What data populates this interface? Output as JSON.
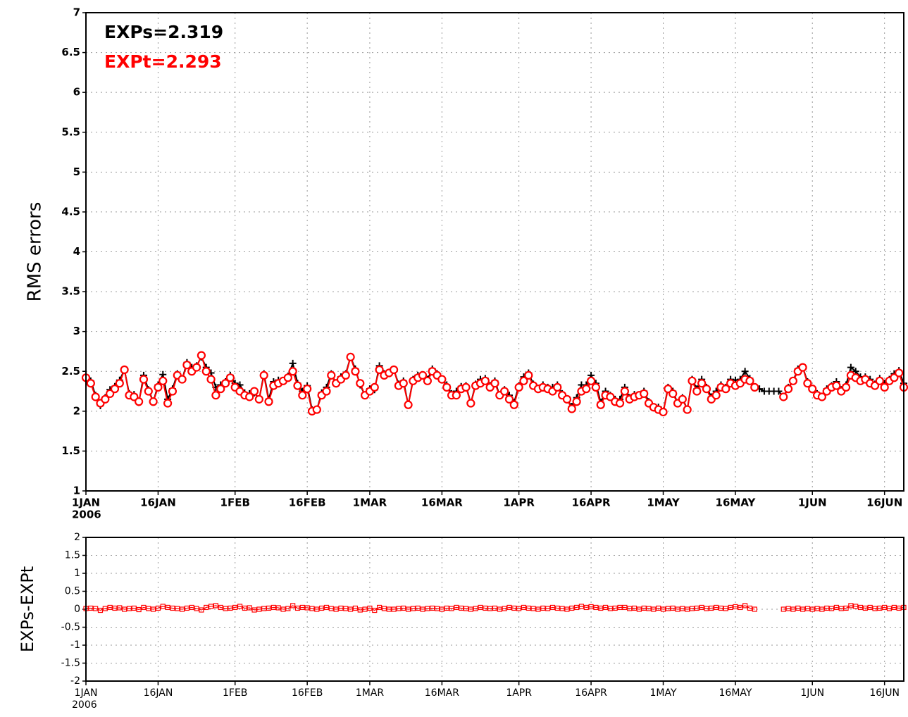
{
  "chart_data": [
    {
      "type": "line",
      "ylabel": "RMS errors",
      "x": [
        "2006-01-01",
        "2006-01-02",
        "2006-01-03",
        "2006-01-04",
        "2006-01-05",
        "2006-01-06",
        "2006-01-07",
        "2006-01-08",
        "2006-01-09",
        "2006-01-10",
        "2006-01-11",
        "2006-01-12",
        "2006-01-13",
        "2006-01-14",
        "2006-01-15",
        "2006-01-16",
        "2006-01-17",
        "2006-01-18",
        "2006-01-19",
        "2006-01-20",
        "2006-01-21",
        "2006-01-22",
        "2006-01-23",
        "2006-01-24",
        "2006-01-25",
        "2006-01-26",
        "2006-01-27",
        "2006-01-28",
        "2006-01-29",
        "2006-01-30",
        "2006-01-31",
        "2006-02-01",
        "2006-02-02",
        "2006-02-03",
        "2006-02-04",
        "2006-02-05",
        "2006-02-06",
        "2006-02-07",
        "2006-02-08",
        "2006-02-09",
        "2006-02-10",
        "2006-02-11",
        "2006-02-12",
        "2006-02-13",
        "2006-02-14",
        "2006-02-15",
        "2006-02-16",
        "2006-02-17",
        "2006-02-18",
        "2006-02-19",
        "2006-02-20",
        "2006-02-21",
        "2006-02-22",
        "2006-02-23",
        "2006-02-24",
        "2006-02-25",
        "2006-02-26",
        "2006-02-27",
        "2006-02-28",
        "2006-03-01",
        "2006-03-02",
        "2006-03-03",
        "2006-03-04",
        "2006-03-05",
        "2006-03-06",
        "2006-03-07",
        "2006-03-08",
        "2006-03-09",
        "2006-03-10",
        "2006-03-11",
        "2006-03-12",
        "2006-03-13",
        "2006-03-14",
        "2006-03-15",
        "2006-03-16",
        "2006-03-17",
        "2006-03-18",
        "2006-03-19",
        "2006-03-20",
        "2006-03-21",
        "2006-03-22",
        "2006-03-23",
        "2006-03-24",
        "2006-03-25",
        "2006-03-26",
        "2006-03-27",
        "2006-03-28",
        "2006-03-29",
        "2006-03-30",
        "2006-03-31",
        "2006-04-01",
        "2006-04-02",
        "2006-04-03",
        "2006-04-04",
        "2006-04-05",
        "2006-04-06",
        "2006-04-07",
        "2006-04-08",
        "2006-04-09",
        "2006-04-10",
        "2006-04-11",
        "2006-04-12",
        "2006-04-13",
        "2006-04-14",
        "2006-04-15",
        "2006-04-16",
        "2006-04-17",
        "2006-04-18",
        "2006-04-19",
        "2006-04-20",
        "2006-04-21",
        "2006-04-22",
        "2006-04-23",
        "2006-04-24",
        "2006-04-25",
        "2006-04-26",
        "2006-04-27",
        "2006-04-28",
        "2006-04-29",
        "2006-04-30",
        "2006-05-01",
        "2006-05-02",
        "2006-05-03",
        "2006-05-04",
        "2006-05-05",
        "2006-05-06",
        "2006-05-07",
        "2006-05-08",
        "2006-05-09",
        "2006-05-10",
        "2006-05-11",
        "2006-05-12",
        "2006-05-13",
        "2006-05-14",
        "2006-05-15",
        "2006-05-16",
        "2006-05-17",
        "2006-05-18",
        "2006-05-19",
        "2006-05-20",
        "2006-05-21",
        "2006-05-22",
        "2006-05-23",
        "2006-05-24",
        "2006-05-25",
        "2006-05-26",
        "2006-05-27",
        "2006-05-28",
        "2006-05-29",
        "2006-05-30",
        "2006-05-31",
        "2006-06-01",
        "2006-06-02",
        "2006-06-03",
        "2006-06-04",
        "2006-06-05",
        "2006-06-06",
        "2006-06-07",
        "2006-06-08",
        "2006-06-09",
        "2006-06-10",
        "2006-06-11",
        "2006-06-12",
        "2006-06-13",
        "2006-06-14",
        "2006-06-15",
        "2006-06-16",
        "2006-06-17",
        "2006-06-18",
        "2006-06-19",
        "2006-06-20"
      ],
      "series": [
        {
          "name": "EXPs=2.319",
          "color": "#000000",
          "marker": "plus",
          "values": [
            2.44,
            2.38,
            2.2,
            2.07,
            2.17,
            2.27,
            2.31,
            2.39,
            2.52,
            2.22,
            2.21,
            2.11,
            2.45,
            2.27,
            2.12,
            2.33,
            2.46,
            2.15,
            2.28,
            2.47,
            2.4,
            2.61,
            2.55,
            2.57,
            2.68,
            2.55,
            2.48,
            2.3,
            2.33,
            2.37,
            2.45,
            2.35,
            2.33,
            2.23,
            2.22,
            2.23,
            2.15,
            2.47,
            2.15,
            2.37,
            2.39,
            2.38,
            2.44,
            2.6,
            2.35,
            2.25,
            2.32,
            2.02,
            2.02,
            2.23,
            2.3,
            2.47,
            2.35,
            2.43,
            2.47,
            2.68,
            2.53,
            2.33,
            2.2,
            2.28,
            2.27,
            2.57,
            2.47,
            2.48,
            2.52,
            2.34,
            2.38,
            2.08,
            2.4,
            2.45,
            2.45,
            2.4,
            2.53,
            2.47,
            2.4,
            2.33,
            2.22,
            2.25,
            2.31,
            2.32,
            2.1,
            2.34,
            2.4,
            2.41,
            2.32,
            2.38,
            2.2,
            2.27,
            2.2,
            2.11,
            2.32,
            2.43,
            2.48,
            2.34,
            2.28,
            2.33,
            2.3,
            2.3,
            2.33,
            2.22,
            2.15,
            2.06,
            2.17,
            2.33,
            2.33,
            2.45,
            2.35,
            2.11,
            2.25,
            2.2,
            2.15,
            2.15,
            2.3,
            2.17,
            2.21,
            2.2,
            2.25,
            2.12,
            2.05,
            2.05,
            1.99,
            2.3,
            2.25,
            2.1,
            2.17,
            2.02,
            2.4,
            2.28,
            2.4,
            2.3,
            2.18,
            2.25,
            2.33,
            2.3,
            2.4,
            2.39,
            2.4,
            2.5,
            2.41,
            2.3,
            2.28,
            2.25,
            2.25,
            2.25,
            2.25,
            2.18,
            2.3,
            2.38,
            2.53,
            2.55,
            2.37,
            2.28,
            2.22,
            2.18,
            2.28,
            2.32,
            2.37,
            2.27,
            2.33,
            2.55,
            2.5,
            2.43,
            2.43,
            2.4,
            2.34,
            2.41,
            2.35,
            2.4,
            2.47,
            2.51,
            2.35
          ]
        },
        {
          "name": "EXPt=2.293",
          "color": "#ff0000",
          "marker": "circle",
          "values": [
            2.42,
            2.35,
            2.18,
            2.1,
            2.15,
            2.22,
            2.28,
            2.35,
            2.52,
            2.2,
            2.18,
            2.12,
            2.4,
            2.25,
            2.12,
            2.3,
            2.38,
            2.1,
            2.25,
            2.45,
            2.4,
            2.58,
            2.5,
            2.55,
            2.7,
            2.5,
            2.4,
            2.2,
            2.28,
            2.35,
            2.42,
            2.3,
            2.25,
            2.2,
            2.18,
            2.25,
            2.15,
            2.45,
            2.12,
            2.32,
            2.35,
            2.38,
            2.42,
            2.5,
            2.32,
            2.2,
            2.28,
            2.0,
            2.02,
            2.2,
            2.25,
            2.45,
            2.35,
            2.4,
            2.45,
            2.68,
            2.5,
            2.35,
            2.2,
            2.25,
            2.3,
            2.52,
            2.45,
            2.48,
            2.52,
            2.32,
            2.35,
            2.08,
            2.38,
            2.42,
            2.45,
            2.38,
            2.5,
            2.45,
            2.4,
            2.3,
            2.2,
            2.2,
            2.28,
            2.3,
            2.1,
            2.32,
            2.35,
            2.38,
            2.3,
            2.35,
            2.2,
            2.25,
            2.15,
            2.08,
            2.3,
            2.38,
            2.45,
            2.32,
            2.28,
            2.3,
            2.28,
            2.25,
            2.3,
            2.2,
            2.15,
            2.03,
            2.12,
            2.25,
            2.28,
            2.38,
            2.3,
            2.08,
            2.2,
            2.18,
            2.12,
            2.1,
            2.25,
            2.15,
            2.18,
            2.2,
            2.22,
            2.1,
            2.05,
            2.02,
            1.99,
            2.28,
            2.22,
            2.1,
            2.15,
            2.02,
            2.38,
            2.25,
            2.35,
            2.28,
            2.15,
            2.2,
            2.3,
            2.28,
            2.35,
            2.32,
            2.35,
            2.4,
            2.38,
            2.3,
            null,
            null,
            null,
            null,
            null,
            2.18,
            2.28,
            2.38,
            2.5,
            2.55,
            2.35,
            2.28,
            2.2,
            2.18,
            2.25,
            2.3,
            2.32,
            2.25,
            2.3,
            2.45,
            2.42,
            2.38,
            2.4,
            2.35,
            2.32,
            2.38,
            2.3,
            2.38,
            2.42,
            2.48,
            2.3
          ]
        }
      ],
      "xlim": [
        "2006-01-01",
        "2006-06-20"
      ],
      "xticks": [
        {
          "value": "2006-01-01",
          "label": "1JAN"
        },
        {
          "value": "2006-01-16",
          "label": "16JAN"
        },
        {
          "value": "2006-02-01",
          "label": "1FEB"
        },
        {
          "value": "2006-02-16",
          "label": "16FEB"
        },
        {
          "value": "2006-03-01",
          "label": "1MAR"
        },
        {
          "value": "2006-03-16",
          "label": "16MAR"
        },
        {
          "value": "2006-04-01",
          "label": "1APR"
        },
        {
          "value": "2006-04-16",
          "label": "16APR"
        },
        {
          "value": "2006-05-01",
          "label": "1MAY"
        },
        {
          "value": "2006-05-16",
          "label": "16MAY"
        },
        {
          "value": "2006-06-01",
          "label": "1JUN"
        },
        {
          "value": "2006-06-16",
          "label": "16JUN"
        }
      ],
      "x_year_label": "2006",
      "ylim": [
        1,
        7
      ],
      "yticks": [
        1,
        1.5,
        2,
        2.5,
        3,
        3.5,
        4,
        4.5,
        5,
        5.5,
        6,
        6.5,
        7
      ],
      "grid": true
    },
    {
      "type": "line",
      "ylabel": "EXPs-EXPt",
      "series": [
        {
          "color": "#ff0000",
          "marker": "square",
          "values": [
            0.02,
            0.03,
            0.02,
            -0.03,
            0.02,
            0.05,
            0.03,
            0.04,
            0.0,
            0.02,
            0.03,
            -0.01,
            0.05,
            0.02,
            0.0,
            0.03,
            0.08,
            0.05,
            0.03,
            0.02,
            0.0,
            0.03,
            0.05,
            0.02,
            -0.02,
            0.05,
            0.08,
            0.1,
            0.05,
            0.02,
            0.03,
            0.05,
            0.08,
            0.03,
            0.04,
            -0.02,
            0.0,
            0.02,
            0.03,
            0.05,
            0.04,
            0.0,
            0.02,
            0.1,
            0.03,
            0.05,
            0.04,
            0.02,
            0.0,
            0.03,
            0.05,
            0.02,
            0.0,
            0.03,
            0.02,
            0.0,
            0.03,
            -0.02,
            0.0,
            0.03,
            -0.03,
            0.05,
            0.02,
            0.0,
            0.0,
            0.02,
            0.03,
            0.0,
            0.02,
            0.03,
            0.0,
            0.02,
            0.03,
            0.02,
            0.0,
            0.03,
            0.02,
            0.05,
            0.03,
            0.02,
            0.0,
            0.02,
            0.05,
            0.03,
            0.02,
            0.03,
            0.0,
            0.02,
            0.05,
            0.03,
            0.02,
            0.05,
            0.03,
            0.02,
            0.0,
            0.03,
            0.02,
            0.05,
            0.03,
            0.02,
            0.0,
            0.03,
            0.05,
            0.08,
            0.05,
            0.07,
            0.05,
            0.03,
            0.05,
            0.02,
            0.03,
            0.05,
            0.05,
            0.02,
            0.03,
            0.0,
            0.03,
            0.02,
            0.0,
            0.03,
            0.0,
            0.02,
            0.03,
            0.0,
            0.02,
            0.0,
            0.02,
            0.03,
            0.05,
            0.02,
            0.03,
            0.05,
            0.03,
            0.02,
            0.05,
            0.07,
            0.05,
            0.1,
            0.03,
            0.0,
            null,
            null,
            null,
            null,
            null,
            0.0,
            0.02,
            0.0,
            0.03,
            0.0,
            0.02,
            0.0,
            0.02,
            0.0,
            0.03,
            0.02,
            0.05,
            0.02,
            0.03,
            0.1,
            0.08,
            0.05,
            0.03,
            0.05,
            0.02,
            0.03,
            0.05,
            0.02,
            0.05,
            0.03,
            0.05
          ]
        }
      ],
      "xlim": [
        "2006-01-01",
        "2006-06-20"
      ],
      "xticks": [
        {
          "value": "2006-01-01",
          "label": "1JAN"
        },
        {
          "value": "2006-01-16",
          "label": "16JAN"
        },
        {
          "value": "2006-02-01",
          "label": "1FEB"
        },
        {
          "value": "2006-02-16",
          "label": "16FEB"
        },
        {
          "value": "2006-03-01",
          "label": "1MAR"
        },
        {
          "value": "2006-03-16",
          "label": "16MAR"
        },
        {
          "value": "2006-04-01",
          "label": "1APR"
        },
        {
          "value": "2006-04-16",
          "label": "16APR"
        },
        {
          "value": "2006-05-01",
          "label": "1MAY"
        },
        {
          "value": "2006-05-16",
          "label": "16MAY"
        },
        {
          "value": "2006-06-01",
          "label": "1JUN"
        },
        {
          "value": "2006-06-16",
          "label": "16JUN"
        }
      ],
      "x_year_label": "2006",
      "ylim": [
        -2,
        2
      ],
      "yticks": [
        -2,
        -1.5,
        -1,
        -0.5,
        0,
        0.5,
        1,
        1.5,
        2
      ],
      "grid": true
    }
  ]
}
